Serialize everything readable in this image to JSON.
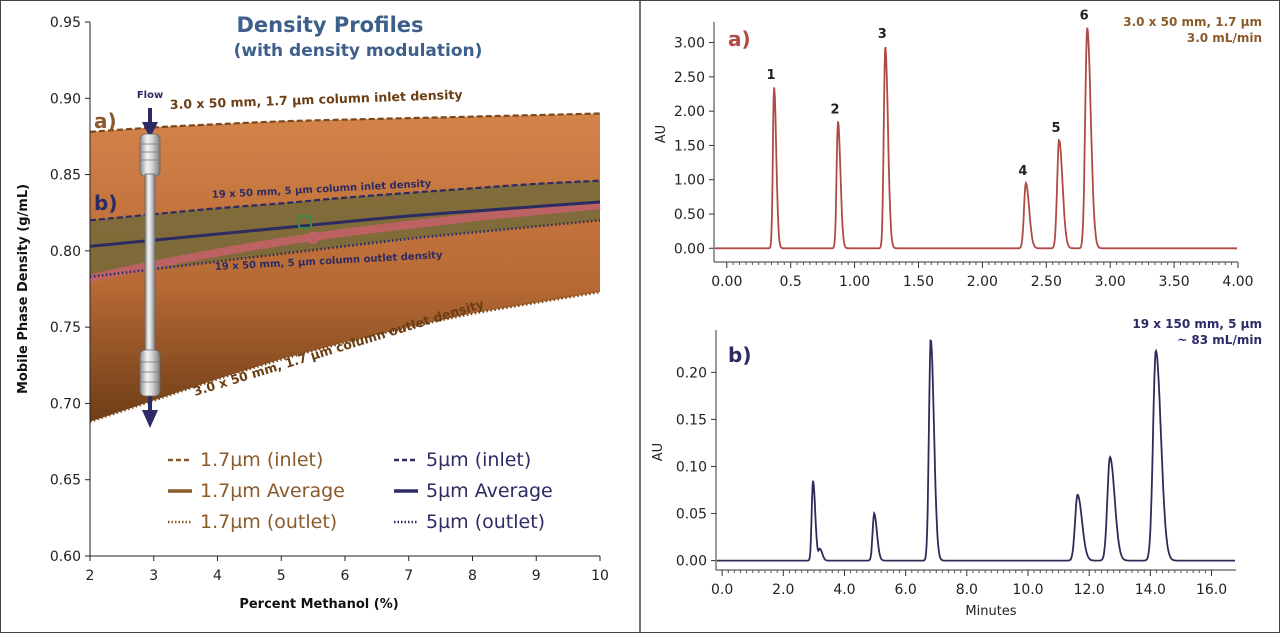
{
  "colors": {
    "brown": "#8a5a2b",
    "brown_dark": "#7a4a1e",
    "navy": "#2d2b63",
    "maroon_trace": "#b04a45",
    "navy_trace": "#2d2b5a",
    "title_blue": "#3d5f8c",
    "band_fill": "#c87a40",
    "pink_avg": "#c8606a"
  },
  "chart_data": [
    {
      "type": "area",
      "title": "Density Profiles",
      "subtitle": "(with density modulation)",
      "xlabel": "Percent Methanol (%)",
      "ylabel": "Mobile Phase Density (g/mL)",
      "xlim": [
        2,
        10
      ],
      "ylim": [
        0.6,
        0.95
      ],
      "xticks": [
        "2",
        "3",
        "4",
        "5",
        "6",
        "7",
        "8",
        "9",
        "10"
      ],
      "yticks": [
        "0.60",
        "0.65",
        "0.70",
        "0.75",
        "0.80",
        "0.85",
        "0.90",
        "0.95"
      ],
      "x": [
        2,
        3,
        4,
        5,
        6,
        7,
        8,
        9,
        10
      ],
      "series": [
        {
          "name": "1.7µm (inlet)",
          "style": "dashed",
          "color": "#7a4a1e",
          "values": [
            0.878,
            0.881,
            0.883,
            0.885,
            0.886,
            0.887,
            0.888,
            0.889,
            0.89
          ]
        },
        {
          "name": "1.7µm Average",
          "style": "solid",
          "color": "#c8606a",
          "values": [
            0.782,
            0.791,
            0.799,
            0.806,
            0.812,
            0.817,
            0.822,
            0.826,
            0.83
          ]
        },
        {
          "name": "1.7µm (outlet)",
          "style": "dotted",
          "color": "#7a4a1e",
          "values": [
            0.688,
            0.702,
            0.716,
            0.729,
            0.74,
            0.75,
            0.759,
            0.766,
            0.773
          ]
        },
        {
          "name": "5µm (inlet)",
          "style": "dashed",
          "color": "#2d2b63",
          "values": [
            0.82,
            0.824,
            0.828,
            0.831,
            0.835,
            0.838,
            0.841,
            0.844,
            0.846
          ]
        },
        {
          "name": "5µm Average",
          "style": "solid",
          "color": "#2d2b63",
          "values": [
            0.803,
            0.807,
            0.811,
            0.815,
            0.819,
            0.823,
            0.826,
            0.829,
            0.832
          ]
        },
        {
          "name": "5µm (outlet)",
          "style": "dotted",
          "color": "#2d2b63",
          "values": [
            0.783,
            0.788,
            0.793,
            0.798,
            0.803,
            0.808,
            0.812,
            0.816,
            0.82
          ]
        }
      ],
      "annotations": {
        "label_a": "a)",
        "label_b": "b)",
        "inlet_17": "3.0 x 50 mm, 1.7 µm column inlet density",
        "inlet_5": "19 x  50 mm, 5 µm column inlet density",
        "outlet_5": "19 x  50 mm, 5 µm column outlet density",
        "outlet_17": "3.0 x 50 mm, 1.7 µm column outlet density",
        "flow": "Flow"
      },
      "legend": {
        "placement": "bottom",
        "items": [
          {
            "label": "1.7µm (inlet)",
            "style": "dashed",
            "color": "#8a5a2b",
            "text_color": "#8a5a2b"
          },
          {
            "label": "5µm (inlet)",
            "style": "dashed",
            "color": "#2d2b63",
            "text_color": "#2d2b63"
          },
          {
            "label": "1.7µm Average",
            "style": "solid",
            "color": "#8a5a2b",
            "text_color": "#8a5a2b"
          },
          {
            "label": "5µm Average",
            "style": "solid",
            "color": "#2d2b63",
            "text_color": "#2d2b63"
          },
          {
            "label": "1.7µm (outlet)",
            "style": "dotted",
            "color": "#8a5a2b",
            "text_color": "#8a5a2b"
          },
          {
            "label": "5µm (outlet)",
            "style": "dotted",
            "color": "#2d2b63",
            "text_color": "#2d2b63"
          }
        ]
      },
      "grid": false
    },
    {
      "type": "line",
      "panel_label": "a)",
      "conditions": [
        "3.0 x 50 mm, 1.7 µm",
        "3.0 mL/min"
      ],
      "xlabel": "",
      "ylabel": "AU",
      "xlim": [
        -0.1,
        4.0
      ],
      "ylim": [
        -0.2,
        3.3
      ],
      "xticks": [
        "0.00",
        "0.5",
        "1.00",
        "1.50",
        "2.00",
        "2.50",
        "3.00",
        "3.50",
        "4.00"
      ],
      "yticks": [
        "0.00",
        "0.50",
        "1.00",
        "1.50",
        "2.00",
        "2.50",
        "3.00"
      ],
      "peaks": [
        {
          "label": "1",
          "x": 0.37,
          "height": 2.35
        },
        {
          "label": "2",
          "x": 0.87,
          "height": 1.85
        },
        {
          "label": "3",
          "x": 1.24,
          "height": 2.95
        },
        {
          "label": "4",
          "x": 2.34,
          "height": 0.95
        },
        {
          "label": "5",
          "x": 2.6,
          "height": 1.58
        },
        {
          "label": "6",
          "x": 2.82,
          "height": 3.22
        }
      ],
      "color": "#b04a45",
      "grid": false
    },
    {
      "type": "line",
      "panel_label": "b)",
      "conditions": [
        "19 x 150 mm, 5 µm",
        "~ 83 mL/min"
      ],
      "xlabel": "Minutes",
      "ylabel": "AU",
      "xlim": [
        -0.2,
        16.8
      ],
      "ylim": [
        -0.01,
        0.245
      ],
      "xticks": [
        "0.0",
        "2.0",
        "4.0",
        "6.0",
        "8.0",
        "10.0",
        "12.0",
        "14.0",
        "16.0"
      ],
      "yticks": [
        "0.00",
        "0.05",
        "0.10",
        "0.15",
        "0.20"
      ],
      "peaks": [
        {
          "x": 2.97,
          "height": 0.085
        },
        {
          "x": 3.2,
          "height": 0.012
        },
        {
          "x": 4.97,
          "height": 0.05
        },
        {
          "x": 6.82,
          "height": 0.235
        },
        {
          "x": 11.62,
          "height": 0.07
        },
        {
          "x": 12.68,
          "height": 0.11
        },
        {
          "x": 14.18,
          "height": 0.223
        }
      ],
      "color": "#2d2b5a",
      "grid": false
    }
  ]
}
